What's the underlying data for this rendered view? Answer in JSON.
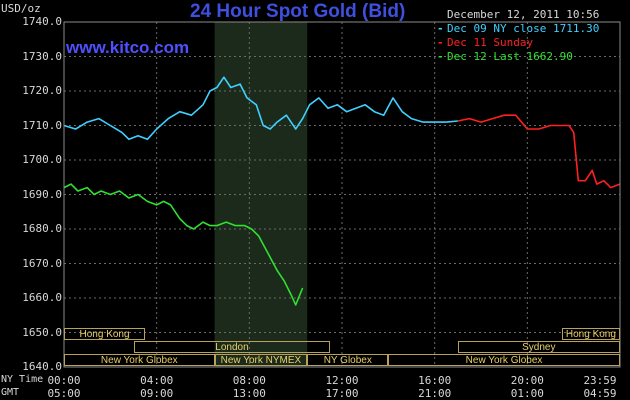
{
  "header": {
    "title": "24 Hour Spot Gold (Bid)",
    "brand": "www.kitco.com",
    "units": "USD/oz",
    "date": "December 12, 2011 10:56"
  },
  "legend": {
    "items": [
      {
        "label": "Dec 09 NY close 1711.30",
        "color": "#3fd0ff"
      },
      {
        "label": "Dec 11 Sunday",
        "color": "#ff2020"
      },
      {
        "label": "Dec 12 Last 1662.90",
        "color": "#30e030"
      }
    ]
  },
  "axes": {
    "row1_label": "NY Time",
    "row2_label": "GMT",
    "x_ny": [
      "00:00",
      "04:00",
      "08:00",
      "12:00",
      "16:00",
      "20:00",
      "23:59"
    ],
    "x_gmt": [
      "05:00",
      "09:00",
      "13:00",
      "17:00",
      "21:00",
      "01:00",
      "04:59"
    ],
    "y_ticks": [
      "1740.0",
      "1730.0",
      "1720.0",
      "1710.0",
      "1700.0",
      "1690.0",
      "1680.0",
      "1670.0",
      "1660.0",
      "1650.0",
      "1640.0"
    ]
  },
  "sessions": {
    "row1": [
      {
        "label": "Hong Kong",
        "start": 0,
        "end": 3.5
      },
      {
        "label": "Hong Kong",
        "start": 21.5,
        "end": 23.99
      }
    ],
    "row2": [
      {
        "label": "London",
        "start": 3.0,
        "end": 11.5
      },
      {
        "label": "Sydney",
        "start": 17.0,
        "end": 23.99
      }
    ],
    "row3": [
      {
        "label": "New York Globex",
        "start": 0,
        "end": 6.5
      },
      {
        "label": "New York NYMEX",
        "start": 6.5,
        "end": 10.5
      },
      {
        "label": "NY Globex",
        "start": 10.5,
        "end": 14.0
      },
      {
        "label": "New York Globex",
        "start": 14.0,
        "end": 23.99
      }
    ]
  },
  "chart_data": {
    "type": "line",
    "title": "24 Hour Spot Gold (Bid)",
    "ylabel": "USD/oz",
    "xlabel": "NY Time",
    "ylim": [
      1640,
      1740
    ],
    "xlim": [
      0,
      24
    ],
    "grid": true,
    "legend_position": "top-right",
    "highlight_band": [
      6.5,
      10.5
    ],
    "series": [
      {
        "name": "Dec 09 NY close 1711.30",
        "color": "#3fd0ff",
        "x": [
          0.0,
          0.5,
          1.0,
          1.5,
          2.0,
          2.5,
          2.8,
          3.2,
          3.6,
          4.0,
          4.5,
          5.0,
          5.5,
          6.0,
          6.3,
          6.6,
          6.9,
          7.2,
          7.6,
          7.9,
          8.3,
          8.6,
          8.9,
          9.2,
          9.6,
          10.0,
          10.3,
          10.6,
          11.0,
          11.4,
          11.8,
          12.2,
          12.6,
          13.0,
          13.4,
          13.8,
          14.2,
          14.6,
          15.0,
          15.5,
          16.0,
          16.5,
          17.0
        ],
        "y": [
          1710,
          1709,
          1711,
          1712,
          1710,
          1708,
          1706,
          1707,
          1706,
          1709,
          1712,
          1714,
          1713,
          1716,
          1720,
          1721,
          1724,
          1721,
          1722,
          1718,
          1716,
          1710,
          1709,
          1711,
          1713,
          1709,
          1712,
          1716,
          1718,
          1715,
          1716,
          1714,
          1715,
          1716,
          1714,
          1713,
          1718,
          1714,
          1712,
          1711,
          1711,
          1711,
          1711.3
        ]
      },
      {
        "name": "Dec 11 Sunday",
        "color": "#ff2020",
        "x": [
          17.0,
          17.5,
          18.0,
          18.5,
          19.0,
          19.5,
          20.0,
          20.5,
          21.0,
          21.5,
          21.8,
          22.0,
          22.2,
          22.5,
          22.8,
          23.0,
          23.3,
          23.6,
          23.99
        ],
        "y": [
          1711.3,
          1712,
          1711,
          1712,
          1713,
          1713,
          1709,
          1709,
          1710,
          1710,
          1710,
          1708,
          1694,
          1694,
          1697,
          1693,
          1694,
          1692,
          1693
        ]
      },
      {
        "name": "Dec 12 Last 1662.90",
        "color": "#30e030",
        "x": [
          0.0,
          0.3,
          0.6,
          1.0,
          1.3,
          1.6,
          2.0,
          2.4,
          2.8,
          3.2,
          3.6,
          4.0,
          4.3,
          4.6,
          5.0,
          5.3,
          5.6,
          6.0,
          6.3,
          6.6,
          7.0,
          7.4,
          7.8,
          8.1,
          8.4,
          8.8,
          9.2,
          9.5,
          9.8,
          10.0,
          10.3
        ],
        "y": [
          1692,
          1693,
          1691,
          1692,
          1690,
          1691,
          1690,
          1691,
          1689,
          1690,
          1688,
          1687,
          1688,
          1687,
          1683,
          1681,
          1680,
          1682,
          1681,
          1681,
          1682,
          1681,
          1681,
          1680,
          1678,
          1673,
          1668,
          1665,
          1661,
          1658,
          1662.9
        ]
      }
    ]
  }
}
